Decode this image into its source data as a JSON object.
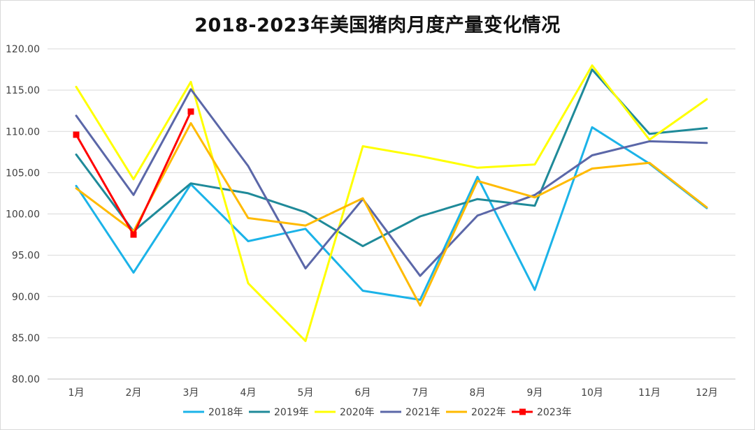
{
  "chart_data": {
    "type": "line",
    "title": "2018-2023年美国猪肉月度产量变化情况",
    "xlabel": "",
    "ylabel": "",
    "categories": [
      "1月",
      "2月",
      "3月",
      "4月",
      "5月",
      "6月",
      "7月",
      "8月",
      "9月",
      "10月",
      "11月",
      "12月"
    ],
    "ylim": [
      80.0,
      120.0
    ],
    "yticks": [
      "80.00",
      "85.00",
      "90.00",
      "95.00",
      "100.00",
      "105.00",
      "110.00",
      "115.00",
      "120.00"
    ],
    "grid": true,
    "legend_position": "bottom",
    "series": [
      {
        "name": "2018年",
        "color": "#1bb3e8",
        "marker": "none",
        "values": [
          103.4,
          92.9,
          103.6,
          96.7,
          98.2,
          90.7,
          89.6,
          104.5,
          90.8,
          110.5,
          106.1,
          100.7
        ]
      },
      {
        "name": "2019年",
        "color": "#1f8a99",
        "marker": "none",
        "values": [
          107.2,
          97.9,
          103.7,
          102.5,
          100.2,
          96.1,
          99.7,
          101.8,
          101.0,
          117.5,
          109.7,
          110.4
        ]
      },
      {
        "name": "2020年",
        "color": "#ffff00",
        "marker": "none",
        "values": [
          115.4,
          104.2,
          116.0,
          91.6,
          84.6,
          108.2,
          107.0,
          105.6,
          106.0,
          118.0,
          109.0,
          113.9
        ]
      },
      {
        "name": "2021年",
        "color": "#5b67a8",
        "marker": "none",
        "values": [
          111.9,
          102.3,
          115.1,
          105.8,
          93.4,
          101.8,
          92.5,
          99.8,
          102.3,
          107.1,
          108.8,
          108.6
        ]
      },
      {
        "name": "2022年",
        "color": "#ffba00",
        "marker": "none",
        "values": [
          103.1,
          97.9,
          111.0,
          99.5,
          98.6,
          101.9,
          88.9,
          104.0,
          102.0,
          105.5,
          106.2,
          100.8
        ]
      },
      {
        "name": "2023年",
        "color": "#ff0000",
        "marker": "square",
        "values": [
          109.6,
          97.5,
          112.4,
          null,
          null,
          null,
          null,
          null,
          null,
          null,
          null,
          null
        ]
      }
    ]
  }
}
